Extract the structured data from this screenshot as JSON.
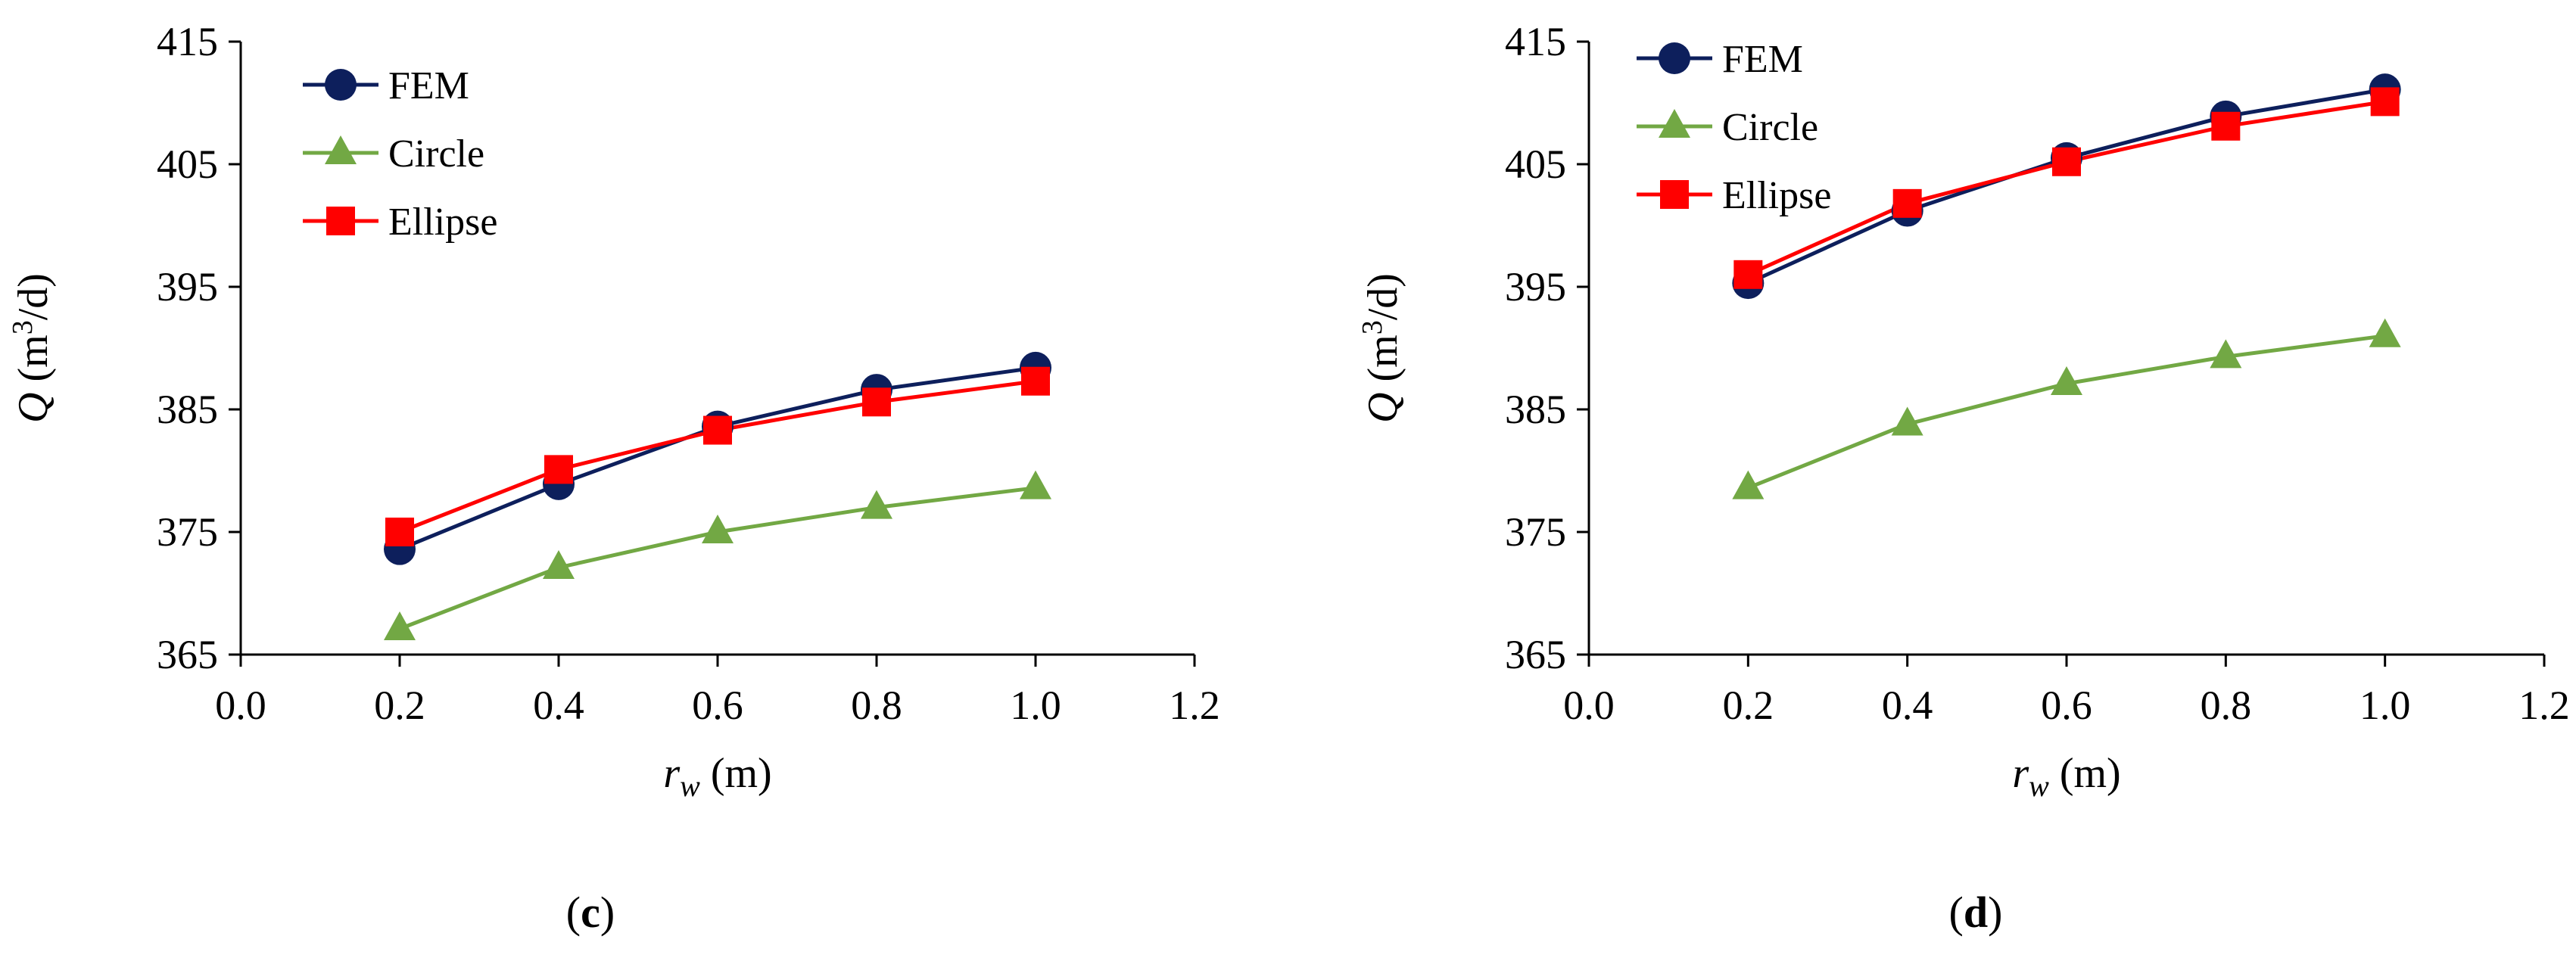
{
  "colors": {
    "FEM": "#0d1f5c",
    "Circle": "#72a844",
    "Ellipse": "#ff0000",
    "axis": "#000000"
  },
  "chart_data": [
    {
      "id": "c",
      "type": "line",
      "panel_label": "c",
      "xlabel_var": "r",
      "xlabel_sub": "w",
      "xlabel_unit": " (m)",
      "ylabel_var": "Q",
      "ylabel_unit_pre": " (m",
      "ylabel_unit_sup": "3",
      "ylabel_unit_post": "/d)",
      "xlim": [
        0,
        1.2
      ],
      "ylim": [
        365,
        415
      ],
      "xticks": [
        "0.0",
        "0.2",
        "0.4",
        "0.6",
        "0.8",
        "1.0",
        "1.2"
      ],
      "yticks": [
        "365",
        "375",
        "385",
        "395",
        "405",
        "415"
      ],
      "legend_position": "top-left",
      "x": [
        0.2,
        0.4,
        0.6,
        0.8,
        1.0
      ],
      "series": [
        {
          "name": "FEM",
          "marker": "circle",
          "values": [
            373.6,
            378.9,
            383.6,
            386.6,
            388.4
          ]
        },
        {
          "name": "Circle",
          "marker": "triangle",
          "values": [
            367.1,
            372.1,
            375.0,
            377.0,
            378.6
          ]
        },
        {
          "name": "Ellipse",
          "marker": "square",
          "values": [
            375.0,
            380.1,
            383.3,
            385.6,
            387.3
          ]
        }
      ]
    },
    {
      "id": "d",
      "type": "line",
      "panel_label": "d",
      "xlabel_var": "r",
      "xlabel_sub": "w",
      "xlabel_unit": " (m)",
      "ylabel_var": "Q",
      "ylabel_unit_pre": " (m",
      "ylabel_unit_sup": "3",
      "ylabel_unit_post": "/d)",
      "xlim": [
        0,
        1.2
      ],
      "ylim": [
        365,
        415
      ],
      "xticks": [
        "0.0",
        "0.2",
        "0.4",
        "0.6",
        "0.8",
        "1.0",
        "1.2"
      ],
      "yticks": [
        "365",
        "375",
        "385",
        "395",
        "405",
        "415"
      ],
      "legend_position": "top-left",
      "x": [
        0.2,
        0.4,
        0.6,
        0.8,
        1.0
      ],
      "series": [
        {
          "name": "FEM",
          "marker": "circle",
          "values": [
            395.3,
            401.2,
            405.5,
            408.9,
            411.1
          ]
        },
        {
          "name": "Circle",
          "marker": "triangle",
          "values": [
            378.6,
            383.8,
            387.1,
            389.3,
            391.0
          ]
        },
        {
          "name": "Ellipse",
          "marker": "square",
          "values": [
            396.0,
            401.8,
            405.2,
            408.1,
            410.1
          ]
        }
      ]
    }
  ]
}
